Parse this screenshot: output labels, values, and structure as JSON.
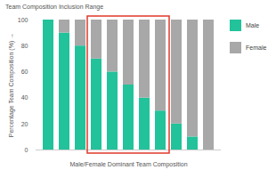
{
  "chart_data": {
    "type": "bar",
    "title": "Team Composition Inclusion Range",
    "x_label": "Male/Female Dominant Team Composition",
    "y_label": "Percentage Team Composition (%)",
    "categories": [
      null,
      null,
      null,
      null,
      null,
      null,
      null,
      null,
      null,
      null,
      null
    ],
    "series": [
      {
        "name": "Male",
        "color": "#22c29b",
        "values": [
          100,
          90,
          80,
          70,
          60,
          50,
          40,
          30,
          20,
          10,
          0
        ]
      },
      {
        "name": "Female",
        "color": "#a8a8a8",
        "values": [
          0,
          10,
          20,
          30,
          40,
          50,
          60,
          70,
          80,
          90,
          100
        ]
      }
    ],
    "stacked": true,
    "ylim": [
      0,
      100
    ],
    "yticks": [
      0,
      20,
      40,
      60,
      80,
      100
    ],
    "legend": "right",
    "annotations": [
      {
        "type": "highlight",
        "series": "Male",
        "from": 70,
        "to": 30,
        "color": "#e0392b"
      }
    ]
  }
}
